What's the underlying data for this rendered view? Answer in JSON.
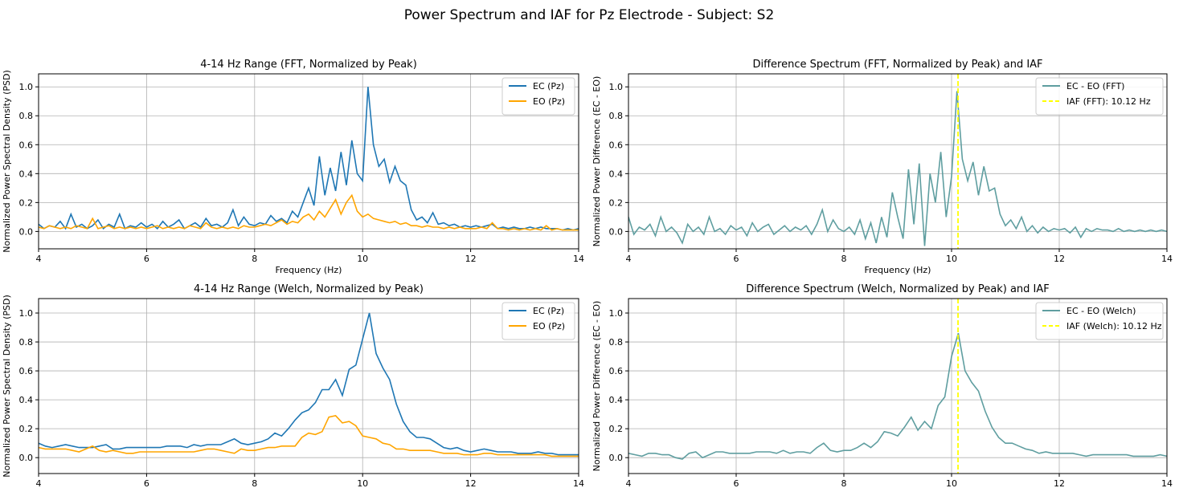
{
  "figure_title": "Power Spectrum and IAF for Pz Electrode - Subject: S2",
  "colors": {
    "ec": "#1f77b4",
    "eo": "#ffa500",
    "diff": "#5f9ea0",
    "iaf": "#ffff00",
    "grid": "#b0b0b0"
  },
  "chart_data": [
    {
      "type": "line",
      "title": "4-14 Hz Range (FFT, Normalized by Peak)",
      "xlabel": "Frequency (Hz)",
      "ylabel": "Normalized Power Spectral Density (PSD)",
      "xlim": [
        4,
        14
      ],
      "ylim": [
        -0.12,
        1.09
      ],
      "xticks": [
        4,
        6,
        8,
        10,
        12,
        14
      ],
      "yticks": [
        0.0,
        0.2,
        0.4,
        0.6,
        0.8,
        1.0
      ],
      "grid": true,
      "legend": "top-right",
      "x": [
        4.0,
        4.1,
        4.2,
        4.3,
        4.4,
        4.5,
        4.6,
        4.7,
        4.8,
        4.9,
        5.0,
        5.1,
        5.2,
        5.3,
        5.4,
        5.5,
        5.6,
        5.7,
        5.8,
        5.9,
        6.0,
        6.1,
        6.2,
        6.3,
        6.4,
        6.5,
        6.6,
        6.7,
        6.8,
        6.9,
        7.0,
        7.1,
        7.2,
        7.3,
        7.4,
        7.5,
        7.6,
        7.7,
        7.8,
        7.9,
        8.0,
        8.1,
        8.2,
        8.3,
        8.4,
        8.5,
        8.6,
        8.7,
        8.8,
        8.9,
        9.0,
        9.1,
        9.2,
        9.3,
        9.4,
        9.5,
        9.6,
        9.7,
        9.8,
        9.9,
        10.0,
        10.1,
        10.2,
        10.3,
        10.4,
        10.5,
        10.6,
        10.7,
        10.8,
        10.9,
        11.0,
        11.1,
        11.2,
        11.3,
        11.4,
        11.5,
        11.6,
        11.7,
        11.8,
        11.9,
        12.0,
        12.1,
        12.2,
        12.3,
        12.4,
        12.5,
        12.6,
        12.7,
        12.8,
        12.9,
        13.0,
        13.1,
        13.2,
        13.3,
        13.4,
        13.5,
        13.6,
        13.7,
        13.8,
        13.9,
        14.0
      ],
      "series": [
        {
          "name": "EC (Pz)",
          "color": "#1f77b4",
          "values": [
            0.05,
            0.02,
            0.04,
            0.03,
            0.07,
            0.02,
            0.12,
            0.03,
            0.05,
            0.02,
            0.04,
            0.08,
            0.02,
            0.05,
            0.03,
            0.12,
            0.02,
            0.04,
            0.03,
            0.06,
            0.03,
            0.05,
            0.02,
            0.07,
            0.03,
            0.05,
            0.08,
            0.02,
            0.04,
            0.06,
            0.03,
            0.09,
            0.04,
            0.05,
            0.03,
            0.06,
            0.15,
            0.04,
            0.1,
            0.05,
            0.04,
            0.06,
            0.05,
            0.11,
            0.07,
            0.09,
            0.06,
            0.14,
            0.1,
            0.2,
            0.3,
            0.18,
            0.52,
            0.25,
            0.44,
            0.28,
            0.55,
            0.32,
            0.63,
            0.4,
            0.35,
            1.0,
            0.6,
            0.45,
            0.5,
            0.34,
            0.45,
            0.35,
            0.32,
            0.15,
            0.08,
            0.1,
            0.06,
            0.13,
            0.05,
            0.06,
            0.04,
            0.05,
            0.03,
            0.04,
            0.03,
            0.04,
            0.03,
            0.04,
            0.05,
            0.02,
            0.03,
            0.02,
            0.03,
            0.02,
            0.02,
            0.03,
            0.02,
            0.03,
            0.02,
            0.02,
            0.02,
            0.01,
            0.02,
            0.01,
            0.02
          ]
        },
        {
          "name": "EO (Pz)",
          "color": "#ffa500",
          "values": [
            0.03,
            0.02,
            0.04,
            0.03,
            0.02,
            0.03,
            0.02,
            0.04,
            0.03,
            0.02,
            0.09,
            0.02,
            0.03,
            0.04,
            0.02,
            0.03,
            0.02,
            0.03,
            0.02,
            0.03,
            0.02,
            0.03,
            0.04,
            0.02,
            0.03,
            0.02,
            0.03,
            0.02,
            0.04,
            0.03,
            0.02,
            0.06,
            0.03,
            0.02,
            0.03,
            0.02,
            0.03,
            0.02,
            0.04,
            0.03,
            0.03,
            0.04,
            0.05,
            0.04,
            0.06,
            0.08,
            0.05,
            0.07,
            0.06,
            0.1,
            0.12,
            0.08,
            0.14,
            0.1,
            0.16,
            0.22,
            0.12,
            0.2,
            0.25,
            0.14,
            0.1,
            0.12,
            0.09,
            0.08,
            0.07,
            0.06,
            0.07,
            0.05,
            0.06,
            0.04,
            0.04,
            0.03,
            0.04,
            0.03,
            0.03,
            0.02,
            0.03,
            0.02,
            0.03,
            0.02,
            0.02,
            0.02,
            0.03,
            0.02,
            0.06,
            0.02,
            0.02,
            0.01,
            0.02,
            0.01,
            0.02,
            0.01,
            0.02,
            0.01,
            0.04,
            0.01,
            0.02,
            0.01,
            0.01,
            0.01,
            0.01
          ]
        }
      ]
    },
    {
      "type": "line",
      "title": "Difference Spectrum (FFT, Normalized by Peak) and IAF",
      "xlabel": "Frequency (Hz)",
      "ylabel": "Normalized Power Difference (EC - EO)",
      "xlim": [
        4,
        14
      ],
      "ylim": [
        -0.12,
        1.09
      ],
      "xticks": [
        4,
        6,
        8,
        10,
        12,
        14
      ],
      "yticks": [
        0.0,
        0.2,
        0.4,
        0.6,
        0.8,
        1.0
      ],
      "grid": true,
      "legend": "top-right",
      "x": [
        4.0,
        4.1,
        4.2,
        4.3,
        4.4,
        4.5,
        4.6,
        4.7,
        4.8,
        4.9,
        5.0,
        5.1,
        5.2,
        5.3,
        5.4,
        5.5,
        5.6,
        5.7,
        5.8,
        5.9,
        6.0,
        6.1,
        6.2,
        6.3,
        6.4,
        6.5,
        6.6,
        6.7,
        6.8,
        6.9,
        7.0,
        7.1,
        7.2,
        7.3,
        7.4,
        7.5,
        7.6,
        7.7,
        7.8,
        7.9,
        8.0,
        8.1,
        8.2,
        8.3,
        8.4,
        8.5,
        8.6,
        8.7,
        8.8,
        8.9,
        9.0,
        9.1,
        9.2,
        9.3,
        9.4,
        9.5,
        9.6,
        9.7,
        9.8,
        9.9,
        10.0,
        10.1,
        10.2,
        10.3,
        10.4,
        10.5,
        10.6,
        10.7,
        10.8,
        10.9,
        11.0,
        11.1,
        11.2,
        11.3,
        11.4,
        11.5,
        11.6,
        11.7,
        11.8,
        11.9,
        12.0,
        12.1,
        12.2,
        12.3,
        12.4,
        12.5,
        12.6,
        12.7,
        12.8,
        12.9,
        13.0,
        13.1,
        13.2,
        13.3,
        13.4,
        13.5,
        13.6,
        13.7,
        13.8,
        13.9,
        14.0
      ],
      "series": [
        {
          "name": "EC - EO (FFT)",
          "color": "#5f9ea0",
          "values": [
            0.1,
            -0.02,
            0.03,
            0.01,
            0.05,
            -0.03,
            0.1,
            0.0,
            0.03,
            -0.01,
            -0.08,
            0.05,
            0.0,
            0.03,
            -0.02,
            0.1,
            0.0,
            0.02,
            -0.02,
            0.04,
            0.01,
            0.03,
            -0.03,
            0.06,
            0.0,
            0.03,
            0.05,
            -0.02,
            0.01,
            0.04,
            0.0,
            0.03,
            0.01,
            0.04,
            -0.02,
            0.05,
            0.15,
            0.0,
            0.08,
            0.02,
            0.0,
            0.03,
            -0.02,
            0.08,
            -0.05,
            0.06,
            -0.08,
            0.1,
            -0.04,
            0.27,
            0.1,
            -0.05,
            0.43,
            0.05,
            0.47,
            -0.1,
            0.4,
            0.2,
            0.55,
            0.1,
            0.38,
            0.97,
            0.5,
            0.35,
            0.48,
            0.25,
            0.45,
            0.28,
            0.3,
            0.12,
            0.04,
            0.08,
            0.02,
            0.1,
            0.0,
            0.04,
            -0.01,
            0.03,
            0.0,
            0.02,
            0.01,
            0.02,
            -0.01,
            0.03,
            -0.04,
            0.02,
            0.0,
            0.02,
            0.01,
            0.01,
            0.0,
            0.02,
            0.0,
            0.01,
            0.0,
            0.01,
            0.0,
            0.01,
            0.0,
            0.01,
            0.0
          ]
        }
      ],
      "vline": {
        "name": "IAF (FFT): 10.12 Hz",
        "x": 10.12,
        "color": "#ffff00",
        "style": "dashed"
      }
    },
    {
      "type": "line",
      "title": "4-14 Hz Range (Welch, Normalized by Peak)",
      "xlabel": "",
      "ylabel": "Normalized Power Spectral Density (PSD)",
      "xlim": [
        4,
        14
      ],
      "ylim": [
        -0.11,
        1.1
      ],
      "xticks": [
        4,
        6,
        8,
        10,
        12,
        14
      ],
      "yticks": [
        0.0,
        0.2,
        0.4,
        0.6,
        0.8,
        1.0
      ],
      "grid": true,
      "legend": "top-right",
      "x": [
        4.0,
        4.125,
        4.25,
        4.375,
        4.5,
        4.625,
        4.75,
        4.875,
        5.0,
        5.125,
        5.25,
        5.375,
        5.5,
        5.625,
        5.75,
        5.875,
        6.0,
        6.125,
        6.25,
        6.375,
        6.5,
        6.625,
        6.75,
        6.875,
        7.0,
        7.125,
        7.25,
        7.375,
        7.5,
        7.625,
        7.75,
        7.875,
        8.0,
        8.125,
        8.25,
        8.375,
        8.5,
        8.625,
        8.75,
        8.875,
        9.0,
        9.125,
        9.25,
        9.375,
        9.5,
        9.625,
        9.75,
        9.875,
        10.0,
        10.125,
        10.25,
        10.375,
        10.5,
        10.625,
        10.75,
        10.875,
        11.0,
        11.125,
        11.25,
        11.375,
        11.5,
        11.625,
        11.75,
        11.875,
        12.0,
        12.125,
        12.25,
        12.375,
        12.5,
        12.625,
        12.75,
        12.875,
        13.0,
        13.125,
        13.25,
        13.375,
        13.5,
        13.625,
        13.75,
        13.875,
        14.0
      ],
      "series": [
        {
          "name": "EC (Pz)",
          "color": "#1f77b4",
          "values": [
            0.1,
            0.08,
            0.07,
            0.08,
            0.09,
            0.08,
            0.07,
            0.07,
            0.07,
            0.08,
            0.09,
            0.06,
            0.06,
            0.07,
            0.07,
            0.07,
            0.07,
            0.07,
            0.07,
            0.08,
            0.08,
            0.08,
            0.07,
            0.09,
            0.08,
            0.09,
            0.09,
            0.09,
            0.11,
            0.13,
            0.1,
            0.09,
            0.1,
            0.11,
            0.13,
            0.17,
            0.15,
            0.2,
            0.26,
            0.31,
            0.33,
            0.38,
            0.47,
            0.47,
            0.54,
            0.43,
            0.61,
            0.64,
            0.82,
            1.0,
            0.72,
            0.62,
            0.54,
            0.37,
            0.25,
            0.18,
            0.14,
            0.14,
            0.13,
            0.1,
            0.07,
            0.06,
            0.07,
            0.05,
            0.04,
            0.05,
            0.06,
            0.05,
            0.04,
            0.04,
            0.04,
            0.03,
            0.03,
            0.03,
            0.04,
            0.03,
            0.03,
            0.02,
            0.02,
            0.02,
            0.02
          ]
        },
        {
          "name": "EO (Pz)",
          "color": "#ffa500",
          "values": [
            0.07,
            0.06,
            0.06,
            0.06,
            0.06,
            0.05,
            0.04,
            0.06,
            0.08,
            0.05,
            0.04,
            0.05,
            0.04,
            0.03,
            0.03,
            0.04,
            0.04,
            0.04,
            0.04,
            0.04,
            0.04,
            0.04,
            0.04,
            0.04,
            0.05,
            0.06,
            0.06,
            0.05,
            0.04,
            0.03,
            0.06,
            0.05,
            0.05,
            0.06,
            0.07,
            0.07,
            0.08,
            0.08,
            0.08,
            0.14,
            0.17,
            0.16,
            0.18,
            0.28,
            0.29,
            0.24,
            0.25,
            0.22,
            0.15,
            0.14,
            0.13,
            0.1,
            0.09,
            0.06,
            0.06,
            0.05,
            0.05,
            0.05,
            0.05,
            0.04,
            0.03,
            0.03,
            0.03,
            0.02,
            0.02,
            0.02,
            0.03,
            0.03,
            0.02,
            0.02,
            0.02,
            0.02,
            0.02,
            0.02,
            0.02,
            0.02,
            0.01,
            0.01,
            0.01,
            0.01,
            0.01
          ]
        }
      ]
    },
    {
      "type": "line",
      "title": "Difference Spectrum (Welch, Normalized by Peak) and IAF",
      "xlabel": "",
      "ylabel": "Normalized Power Difference (EC - EO)",
      "xlim": [
        4,
        14
      ],
      "ylim": [
        -0.11,
        1.1
      ],
      "xticks": [
        4,
        6,
        8,
        10,
        12,
        14
      ],
      "yticks": [
        0.0,
        0.2,
        0.4,
        0.6,
        0.8,
        1.0
      ],
      "grid": true,
      "legend": "top-right",
      "x": [
        4.0,
        4.125,
        4.25,
        4.375,
        4.5,
        4.625,
        4.75,
        4.875,
        5.0,
        5.125,
        5.25,
        5.375,
        5.5,
        5.625,
        5.75,
        5.875,
        6.0,
        6.125,
        6.25,
        6.375,
        6.5,
        6.625,
        6.75,
        6.875,
        7.0,
        7.125,
        7.25,
        7.375,
        7.5,
        7.625,
        7.75,
        7.875,
        8.0,
        8.125,
        8.25,
        8.375,
        8.5,
        8.625,
        8.75,
        8.875,
        9.0,
        9.125,
        9.25,
        9.375,
        9.5,
        9.625,
        9.75,
        9.875,
        10.0,
        10.125,
        10.25,
        10.375,
        10.5,
        10.625,
        10.75,
        10.875,
        11.0,
        11.125,
        11.25,
        11.375,
        11.5,
        11.625,
        11.75,
        11.875,
        12.0,
        12.125,
        12.25,
        12.375,
        12.5,
        12.625,
        12.75,
        12.875,
        13.0,
        13.125,
        13.25,
        13.375,
        13.5,
        13.625,
        13.75,
        13.875,
        14.0
      ],
      "series": [
        {
          "name": "EC - EO (Welch)",
          "color": "#5f9ea0",
          "values": [
            0.03,
            0.02,
            0.01,
            0.03,
            0.03,
            0.02,
            0.02,
            0.0,
            -0.01,
            0.03,
            0.04,
            0.0,
            0.02,
            0.04,
            0.04,
            0.03,
            0.03,
            0.03,
            0.03,
            0.04,
            0.04,
            0.04,
            0.03,
            0.05,
            0.03,
            0.04,
            0.04,
            0.03,
            0.07,
            0.1,
            0.05,
            0.04,
            0.05,
            0.05,
            0.07,
            0.1,
            0.07,
            0.11,
            0.18,
            0.17,
            0.15,
            0.21,
            0.28,
            0.19,
            0.25,
            0.2,
            0.36,
            0.42,
            0.7,
            0.86,
            0.6,
            0.52,
            0.46,
            0.32,
            0.21,
            0.14,
            0.1,
            0.1,
            0.08,
            0.06,
            0.05,
            0.03,
            0.04,
            0.03,
            0.03,
            0.03,
            0.03,
            0.02,
            0.01,
            0.02,
            0.02,
            0.02,
            0.02,
            0.02,
            0.02,
            0.01,
            0.01,
            0.01,
            0.01,
            0.02,
            0.01
          ]
        }
      ],
      "vline": {
        "name": "IAF (Welch): 10.12 Hz",
        "x": 10.12,
        "color": "#ffff00",
        "style": "dashed"
      }
    }
  ]
}
